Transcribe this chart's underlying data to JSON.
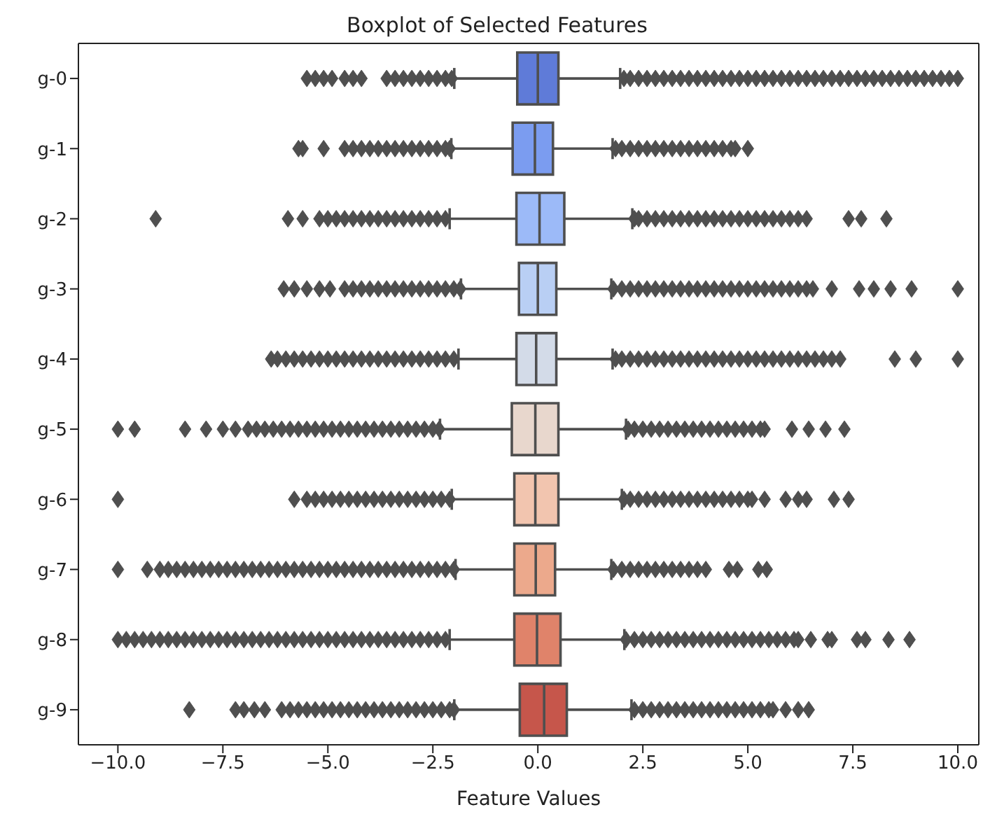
{
  "chart_data": {
    "type": "box",
    "orientation": "horizontal",
    "title": "Boxplot of Selected Features",
    "xlabel": "Feature Values",
    "categories": [
      "g-0",
      "g-1",
      "g-2",
      "g-3",
      "g-4",
      "g-5",
      "g-6",
      "g-7",
      "g-8",
      "g-9"
    ],
    "colors": [
      "#5f7bd8",
      "#7b9cf0",
      "#9cbaf8",
      "#b9cff4",
      "#d3dbe8",
      "#e8d7cd",
      "#f2c5af",
      "#eca98c",
      "#e0836a",
      "#c6564b"
    ],
    "boxes": [
      {
        "low": -1.99,
        "q1": -0.49,
        "median": 0.0,
        "q3": 0.49,
        "high": 1.96,
        "outliers": [
          -5.5,
          -5.3,
          -5.1,
          -4.9,
          -4.6,
          -4.4,
          -4.2,
          -3.6,
          -3.4,
          -3.2,
          -3.0,
          -2.8,
          -2.6,
          -2.4,
          -2.2,
          -2.05,
          2.05,
          2.2,
          2.4,
          2.6,
          2.8,
          3.0,
          3.2,
          3.4,
          3.6,
          3.8,
          4.0,
          4.2,
          4.4,
          4.6,
          4.8,
          5.0,
          5.2,
          5.4,
          5.6,
          5.8,
          6.0,
          6.2,
          6.4,
          6.6,
          6.8,
          7.0,
          7.2,
          7.4,
          7.6,
          7.8,
          8.0,
          8.2,
          8.4,
          8.6,
          8.8,
          9.0,
          9.2,
          9.4,
          9.6,
          9.8,
          10.0
        ]
      },
      {
        "low": -2.06,
        "q1": -0.6,
        "median": -0.07,
        "q3": 0.36,
        "high": 1.78,
        "outliers": [
          -5.7,
          -5.6,
          -5.1,
          -4.6,
          -4.4,
          -4.2,
          -4.0,
          -3.8,
          -3.6,
          -3.4,
          -3.2,
          -3.0,
          -2.8,
          -2.6,
          -2.4,
          -2.2,
          -2.1,
          1.85,
          2.0,
          2.2,
          2.4,
          2.6,
          2.8,
          3.0,
          3.2,
          3.4,
          3.6,
          3.8,
          4.0,
          4.2,
          4.4,
          4.6,
          4.7,
          5.0
        ]
      },
      {
        "low": -2.1,
        "q1": -0.51,
        "median": 0.04,
        "q3": 0.63,
        "high": 2.25,
        "outliers": [
          -9.1,
          -5.95,
          -5.6,
          -5.2,
          -5.0,
          -4.8,
          -4.6,
          -4.4,
          -4.2,
          -4.0,
          -3.8,
          -3.6,
          -3.4,
          -3.2,
          -3.0,
          -2.8,
          -2.6,
          -2.4,
          -2.2,
          2.3,
          2.4,
          2.6,
          2.8,
          3.0,
          3.2,
          3.4,
          3.6,
          3.8,
          4.0,
          4.2,
          4.4,
          4.6,
          4.8,
          5.0,
          5.2,
          5.4,
          5.6,
          5.8,
          6.0,
          6.2,
          6.4,
          7.4,
          7.7,
          8.3
        ]
      },
      {
        "low": -1.83,
        "q1": -0.45,
        "median": 0.0,
        "q3": 0.44,
        "high": 1.75,
        "outliers": [
          -6.05,
          -5.8,
          -5.5,
          -5.2,
          -4.95,
          -4.6,
          -4.4,
          -4.2,
          -4.0,
          -3.8,
          -3.6,
          -3.4,
          -3.2,
          -3.0,
          -2.8,
          -2.6,
          -2.4,
          -2.2,
          -2.0,
          -1.85,
          1.8,
          2.0,
          2.2,
          2.4,
          2.6,
          2.8,
          3.0,
          3.2,
          3.4,
          3.6,
          3.8,
          4.0,
          4.2,
          4.4,
          4.6,
          4.8,
          5.0,
          5.2,
          5.4,
          5.6,
          5.8,
          6.0,
          6.2,
          6.4,
          6.55,
          7.0,
          7.65,
          8.0,
          8.4,
          8.9,
          10.0
        ]
      },
      {
        "low": -1.89,
        "q1": -0.51,
        "median": -0.04,
        "q3": 0.44,
        "high": 1.78,
        "outliers": [
          -6.35,
          -6.2,
          -6.0,
          -5.8,
          -5.6,
          -5.4,
          -5.2,
          -5.0,
          -4.8,
          -4.6,
          -4.4,
          -4.2,
          -4.0,
          -3.8,
          -3.6,
          -3.4,
          -3.2,
          -3.0,
          -2.8,
          -2.6,
          -2.4,
          -2.2,
          -2.0,
          1.85,
          2.0,
          2.2,
          2.4,
          2.6,
          2.8,
          3.0,
          3.2,
          3.4,
          3.6,
          3.8,
          4.0,
          4.2,
          4.4,
          4.6,
          4.8,
          5.0,
          5.2,
          5.4,
          5.6,
          5.8,
          6.0,
          6.2,
          6.4,
          6.6,
          6.8,
          7.0,
          7.2,
          8.5,
          9.0,
          10.0
        ]
      },
      {
        "low": -2.33,
        "q1": -0.62,
        "median": -0.06,
        "q3": 0.49,
        "high": 2.1,
        "outliers": [
          -10.0,
          -9.6,
          -8.4,
          -7.9,
          -7.5,
          -7.2,
          -6.9,
          -6.7,
          -6.5,
          -6.3,
          -6.1,
          -5.9,
          -5.7,
          -5.5,
          -5.3,
          -5.1,
          -4.9,
          -4.7,
          -4.5,
          -4.3,
          -4.1,
          -3.9,
          -3.7,
          -3.5,
          -3.3,
          -3.1,
          -2.9,
          -2.7,
          -2.5,
          -2.35,
          2.15,
          2.3,
          2.5,
          2.7,
          2.9,
          3.1,
          3.3,
          3.5,
          3.7,
          3.9,
          4.1,
          4.3,
          4.5,
          4.7,
          4.9,
          5.1,
          5.3,
          5.4,
          6.05,
          6.45,
          6.85,
          7.3
        ]
      },
      {
        "low": -2.05,
        "q1": -0.56,
        "median": -0.06,
        "q3": 0.49,
        "high": 2.0,
        "outliers": [
          -10.0,
          -5.8,
          -5.5,
          -5.3,
          -5.1,
          -4.9,
          -4.7,
          -4.5,
          -4.3,
          -4.1,
          -3.9,
          -3.7,
          -3.5,
          -3.3,
          -3.1,
          -2.9,
          -2.7,
          -2.5,
          -2.3,
          -2.1,
          2.05,
          2.2,
          2.4,
          2.6,
          2.8,
          3.0,
          3.2,
          3.4,
          3.6,
          3.8,
          4.0,
          4.2,
          4.4,
          4.6,
          4.8,
          5.0,
          5.1,
          5.4,
          5.9,
          6.2,
          6.4,
          7.05,
          7.4
        ]
      },
      {
        "low": -1.96,
        "q1": -0.56,
        "median": -0.05,
        "q3": 0.41,
        "high": 1.75,
        "outliers": [
          -10.0,
          -9.3,
          -9.0,
          -8.8,
          -8.6,
          -8.4,
          -8.2,
          -8.0,
          -7.8,
          -7.6,
          -7.4,
          -7.2,
          -7.0,
          -6.8,
          -6.6,
          -6.4,
          -6.2,
          -6.0,
          -5.8,
          -5.6,
          -5.4,
          -5.2,
          -5.0,
          -4.8,
          -4.6,
          -4.4,
          -4.2,
          -4.0,
          -3.8,
          -3.6,
          -3.4,
          -3.2,
          -3.0,
          -2.8,
          -2.6,
          -2.4,
          -2.2,
          -2.0,
          1.8,
          2.0,
          2.2,
          2.4,
          2.6,
          2.8,
          3.0,
          3.2,
          3.4,
          3.6,
          3.8,
          4.0,
          4.55,
          4.75,
          5.25,
          5.45
        ]
      },
      {
        "low": -2.1,
        "q1": -0.56,
        "median": -0.02,
        "q3": 0.54,
        "high": 2.06,
        "outliers": [
          -10.0,
          -9.8,
          -9.6,
          -9.4,
          -9.2,
          -9.0,
          -8.8,
          -8.6,
          -8.4,
          -8.2,
          -8.0,
          -7.8,
          -7.6,
          -7.4,
          -7.2,
          -7.0,
          -6.8,
          -6.6,
          -6.4,
          -6.2,
          -6.0,
          -5.8,
          -5.6,
          -5.4,
          -5.2,
          -5.0,
          -4.8,
          -4.6,
          -4.4,
          -4.2,
          -4.0,
          -3.8,
          -3.6,
          -3.4,
          -3.2,
          -3.0,
          -2.8,
          -2.6,
          -2.4,
          -2.2,
          2.1,
          2.3,
          2.5,
          2.7,
          2.9,
          3.1,
          3.3,
          3.5,
          3.7,
          3.9,
          4.1,
          4.3,
          4.5,
          4.7,
          4.9,
          5.1,
          5.3,
          5.5,
          5.7,
          5.9,
          6.1,
          6.2,
          6.5,
          6.9,
          7.0,
          7.6,
          7.8,
          8.35,
          8.85
        ]
      },
      {
        "low": -1.99,
        "q1": -0.43,
        "median": 0.15,
        "q3": 0.69,
        "high": 2.23,
        "outliers": [
          -8.3,
          -7.2,
          -7.0,
          -6.75,
          -6.5,
          -6.1,
          -5.9,
          -5.7,
          -5.5,
          -5.3,
          -5.1,
          -4.9,
          -4.7,
          -4.5,
          -4.3,
          -4.1,
          -3.9,
          -3.7,
          -3.5,
          -3.3,
          -3.1,
          -2.9,
          -2.7,
          -2.5,
          -2.3,
          -2.1,
          -2.0,
          2.3,
          2.5,
          2.7,
          2.9,
          3.1,
          3.3,
          3.5,
          3.7,
          3.9,
          4.1,
          4.3,
          4.5,
          4.7,
          4.9,
          5.1,
          5.3,
          5.5,
          5.6,
          5.9,
          6.2,
          6.45
        ]
      }
    ],
    "xlim": [
      -10.94,
      10.5
    ],
    "xticks": [
      {
        "value": -10,
        "label": "−10.0"
      },
      {
        "value": -7.5,
        "label": "−7.5"
      },
      {
        "value": -5,
        "label": "−5.0"
      },
      {
        "value": -2.5,
        "label": "−2.5"
      },
      {
        "value": 0,
        "label": "0.0"
      },
      {
        "value": 2.5,
        "label": "2.5"
      },
      {
        "value": 5,
        "label": "5.0"
      },
      {
        "value": 7.5,
        "label": "7.5"
      },
      {
        "value": 10,
        "label": "10.0"
      }
    ],
    "grid": false
  }
}
